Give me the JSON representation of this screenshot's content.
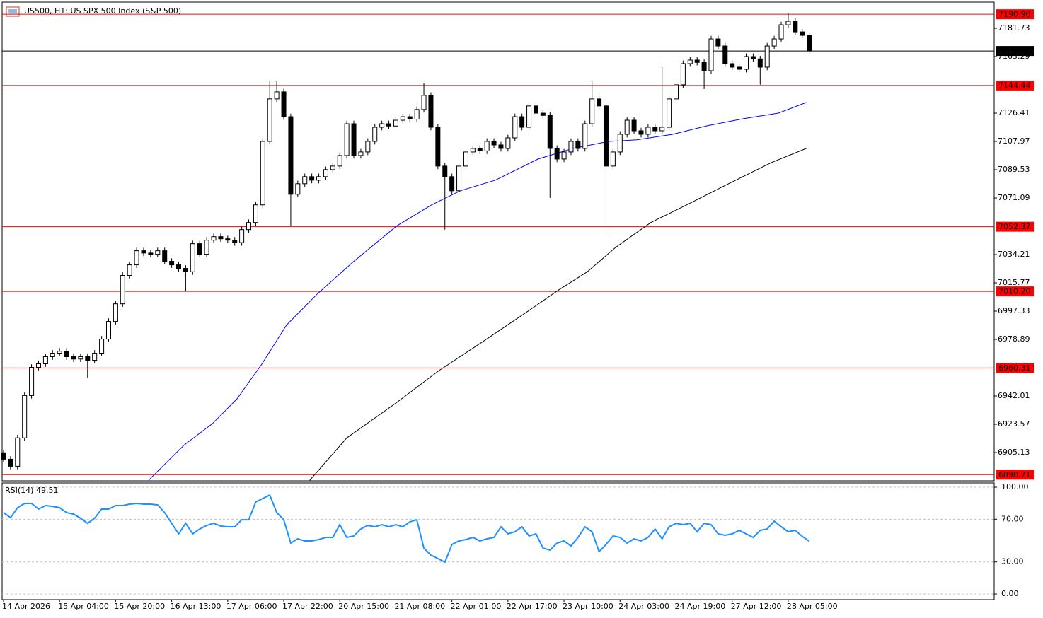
{
  "chart_data": [
    {
      "type": "candlestick",
      "title": "US500, H1: US SPX 500 Index (S&P 500)",
      "categories": [
        "14 Apr 2026",
        null,
        null,
        null,
        null,
        null,
        null,
        null,
        "15 Apr 04:00",
        null,
        null,
        null,
        null,
        null,
        null,
        null,
        "15 Apr 20:00",
        null,
        null,
        null,
        null,
        null,
        null,
        null,
        "16 Apr 13:00",
        null,
        null,
        null,
        null,
        null,
        null,
        null,
        "17 Apr 06:00",
        null,
        null,
        null,
        null,
        null,
        null,
        null,
        "17 Apr 22:00",
        null,
        null,
        null,
        null,
        null,
        null,
        null,
        "20 Apr 15:00",
        null,
        null,
        null,
        null,
        null,
        null,
        null,
        "21 Apr 08:00",
        null,
        null,
        null,
        null,
        null,
        null,
        null,
        "22 Apr 01:00",
        null,
        null,
        null,
        null,
        null,
        null,
        null,
        "22 Apr 17:00",
        null,
        null,
        null,
        null,
        null,
        null,
        null,
        "23 Apr 10:00",
        null,
        null,
        null,
        null,
        null,
        null,
        null,
        "24 Apr 03:00",
        null,
        null,
        null,
        null,
        null,
        null,
        null,
        "24 Apr 19:00",
        null,
        null,
        null,
        null,
        null,
        null,
        null,
        "27 Apr 12:00",
        null,
        null,
        null,
        null,
        null,
        null,
        null,
        "28 Apr 05:00",
        null,
        null,
        null
      ],
      "open": [
        6905.0,
        6900.8,
        6896.2,
        6914.7,
        6942.3,
        6960.7,
        6963.0,
        6967.6,
        6969.9,
        6971.2,
        6967.6,
        6966.1,
        6967.6,
        6965.3,
        6969.9,
        6979.1,
        6990.6,
        7002.1,
        7020.6,
        7027.5,
        7036.7,
        7035.2,
        7034.4,
        7036.7,
        7029.8,
        7027.5,
        7025.2,
        7023.0,
        7041.3,
        7034.4,
        7043.6,
        7045.9,
        7044.5,
        7043.6,
        7042.0,
        7050.5,
        7055.1,
        7066.6,
        7108.0,
        7135.7,
        7140.3,
        7124.1,
        7073.5,
        7080.4,
        7085.0,
        7082.7,
        7085.0,
        7089.6,
        7091.9,
        7098.8,
        7119.5,
        7098.8,
        7101.1,
        7108.0,
        7117.2,
        7119.5,
        7118.0,
        7121.8,
        7124.1,
        7122.5,
        7128.8,
        7138.0,
        7117.2,
        7091.9,
        7085.0,
        7075.8,
        7091.9,
        7101.1,
        7103.4,
        7101.8,
        7108.0,
        7105.7,
        7103.4,
        7110.3,
        7124.1,
        7117.2,
        7131.1,
        7126.4,
        7124.9,
        7103.4,
        7096.5,
        7101.1,
        7108.0,
        7103.4,
        7119.5,
        7135.7,
        7131.1,
        7091.9,
        7101.1,
        7112.6,
        7121.8,
        7114.9,
        7112.6,
        7117.2,
        7114.9,
        7117.2,
        7135.7,
        7144.9,
        7158.7,
        7161.0,
        7159.5,
        7154.1,
        7174.8,
        7170.2,
        7158.7,
        7156.4,
        7155.0,
        7163.3,
        7161.8,
        7156.4,
        7170.2,
        7174.8,
        7184.0,
        7186.3,
        7179.4,
        7177.1
      ],
      "high": [
        6907.0,
        6902.8,
        6916.7,
        6944.3,
        6962.7,
        6965.0,
        6969.6,
        6971.9,
        6973.2,
        6973.2,
        6969.6,
        6969.6,
        6969.6,
        6971.9,
        6981.1,
        6992.6,
        7004.1,
        7022.6,
        7029.5,
        7038.7,
        7038.7,
        7037.2,
        7038.7,
        7038.7,
        7031.8,
        7029.5,
        7027.2,
        7043.3,
        7043.3,
        7045.6,
        7047.9,
        7047.9,
        7046.5,
        7045.6,
        7052.5,
        7057.1,
        7068.6,
        7110.0,
        7147.2,
        7147.2,
        7142.3,
        7126.1,
        7082.4,
        7087.0,
        7087.0,
        7087.0,
        7091.6,
        7093.9,
        7100.8,
        7121.5,
        7121.5,
        7103.1,
        7110.0,
        7119.2,
        7121.5,
        7121.5,
        7123.8,
        7126.1,
        7126.1,
        7130.8,
        7145.8,
        7140.0,
        7119.2,
        7093.9,
        7087.0,
        7093.9,
        7103.1,
        7105.4,
        7105.4,
        7110.0,
        7110.0,
        7107.7,
        7112.3,
        7126.1,
        7126.1,
        7133.1,
        7133.1,
        7128.4,
        7126.9,
        7105.4,
        7103.1,
        7110.0,
        7110.0,
        7121.5,
        7147.2,
        7137.7,
        7133.1,
        7103.1,
        7114.6,
        7123.8,
        7123.8,
        7116.9,
        7119.2,
        7119.2,
        7156.4,
        7137.7,
        7146.9,
        7160.7,
        7163.0,
        7163.0,
        7161.5,
        7176.8,
        7176.8,
        7172.2,
        7160.7,
        7158.4,
        7165.3,
        7165.3,
        7163.8,
        7172.2,
        7176.8,
        7186.0,
        7191.8,
        7188.3,
        7181.4,
        7179.1
      ],
      "low": [
        6898.8,
        6894.2,
        6894.2,
        6912.7,
        6940.3,
        6958.7,
        6961.0,
        6965.6,
        6967.9,
        6965.6,
        6964.1,
        6964.1,
        6953.8,
        6963.3,
        6967.9,
        6977.1,
        6988.6,
        7000.1,
        7018.6,
        7025.5,
        7033.2,
        7032.4,
        7032.4,
        7027.8,
        7025.5,
        7023.2,
        7010.4,
        7021.0,
        7032.4,
        7032.4,
        7041.6,
        7042.5,
        7041.6,
        7040.0,
        7040.0,
        7048.5,
        7053.1,
        7064.6,
        7106.0,
        7133.7,
        7122.1,
        7052.8,
        7071.5,
        7078.4,
        7080.7,
        7080.7,
        7083.0,
        7087.6,
        7089.9,
        7096.8,
        7096.8,
        7096.8,
        7099.1,
        7106.0,
        7115.2,
        7116.0,
        7116.0,
        7119.8,
        7120.5,
        7120.5,
        7126.8,
        7115.2,
        7089.9,
        7050.5,
        7073.8,
        7073.8,
        7089.9,
        7099.1,
        7099.8,
        7099.8,
        7103.7,
        7101.4,
        7101.4,
        7108.3,
        7115.2,
        7115.2,
        7124.4,
        7122.9,
        7071.2,
        7094.5,
        7094.5,
        7099.1,
        7101.4,
        7101.4,
        7117.5,
        7129.1,
        7047.3,
        7089.9,
        7099.1,
        7110.6,
        7112.9,
        7110.6,
        7110.6,
        7112.9,
        7112.9,
        7115.2,
        7133.7,
        7142.9,
        7156.7,
        7157.5,
        7142.1,
        7152.1,
        7168.2,
        7156.7,
        7154.4,
        7153.0,
        7153.0,
        7159.8,
        7145.0,
        7154.4,
        7168.2,
        7172.8,
        7182.0,
        7177.4,
        7175.1,
        7165.0
      ],
      "close": [
        6900.8,
        6896.2,
        6914.7,
        6942.3,
        6960.7,
        6963.0,
        6967.6,
        6969.9,
        6971.2,
        6967.6,
        6966.1,
        6967.6,
        6965.3,
        6969.9,
        6979.1,
        6990.6,
        7002.1,
        7020.6,
        7027.5,
        7036.7,
        7035.2,
        7034.4,
        7036.7,
        7029.8,
        7027.5,
        7025.2,
        7023.0,
        7041.3,
        7034.4,
        7043.6,
        7045.9,
        7044.5,
        7043.6,
        7042.0,
        7050.5,
        7055.1,
        7066.6,
        7108.0,
        7135.7,
        7140.3,
        7124.1,
        7073.5,
        7080.4,
        7085.0,
        7082.7,
        7085.0,
        7089.6,
        7091.9,
        7098.8,
        7119.5,
        7098.8,
        7101.1,
        7108.0,
        7117.2,
        7119.5,
        7118.0,
        7121.8,
        7124.1,
        7122.5,
        7128.8,
        7138.0,
        7117.2,
        7091.9,
        7085.0,
        7075.8,
        7091.9,
        7101.1,
        7103.4,
        7101.8,
        7108.0,
        7105.7,
        7103.4,
        7110.3,
        7124.1,
        7117.2,
        7131.1,
        7126.4,
        7124.9,
        7103.4,
        7096.5,
        7101.1,
        7108.0,
        7103.4,
        7119.5,
        7135.7,
        7131.1,
        7091.9,
        7101.1,
        7112.6,
        7121.8,
        7114.9,
        7112.6,
        7117.2,
        7114.9,
        7117.2,
        7135.7,
        7144.9,
        7158.7,
        7161.0,
        7159.5,
        7154.1,
        7174.8,
        7170.2,
        7158.7,
        7156.4,
        7155.0,
        7163.3,
        7161.8,
        7156.4,
        7170.2,
        7174.8,
        7184.0,
        7186.3,
        7179.4,
        7177.1,
        7166.95
      ],
      "up_color": "#ffffff",
      "down_color": "#000000",
      "series": [
        {
          "color": "#0000ff",
          "x": [
            20.7,
            25.8,
            29.8,
            33.3,
            36.9,
            40.4,
            44.9,
            50.0,
            56.1,
            61.1,
            65.2,
            70.2,
            76.3,
            81.3,
            86.4,
            90.4,
            95.5,
            100.5,
            105.6,
            110.6,
            114.6
          ],
          "values": [
            6887.0,
            6910.1,
            6923.9,
            6940.0,
            6963.0,
            6988.3,
            7009.0,
            7029.8,
            7052.8,
            7066.6,
            7075.8,
            7082.7,
            7096.5,
            7103.4,
            7108.0,
            7109.0,
            7112.6,
            7118.2,
            7122.8,
            7126.4,
            7133.4
          ]
        },
        {
          "color": "#000000",
          "x": [
            43.7,
            49.0,
            56.1,
            62.1,
            68.2,
            74.2,
            79.3,
            83.3,
            87.4,
            92.4,
            97.5,
            103.5,
            109.6,
            114.6
          ],
          "values": [
            6887.0,
            6914.7,
            6937.7,
            6958.4,
            6976.8,
            6995.2,
            7011.3,
            7022.9,
            7039.0,
            7055.1,
            7066.6,
            7080.4,
            7094.2,
            7103.4
          ]
        }
      ],
      "levels": [
        {
          "value": 7190.9,
          "label": "7190.90"
        },
        7144.44,
        7052.37,
        {
          "value": 7010.2,
          "label": "7010.20"
        },
        6960.31,
        6890.71
      ],
      "level_color": "#ff0000",
      "current_price": 7166.95,
      "xlim": [
        -0.2,
        141.4
      ],
      "ylim": [
        6886.7,
        7198.8
      ],
      "yticks": [
        7181.73,
        7163.29,
        7126.41,
        7107.97,
        7089.53,
        7071.09,
        7034.21,
        7015.77,
        6997.33,
        6978.89,
        6942.01,
        6923.57,
        6905.13
      ]
    },
    {
      "type": "line",
      "title": "RSI(14) 49.51",
      "color": "#1e90ff",
      "values": [
        76.2,
        71.5,
        80.8,
        84.8,
        84.8,
        79.5,
        82.8,
        82.1,
        80.8,
        76.2,
        74.8,
        70.9,
        66.2,
        70.9,
        79.5,
        79.5,
        82.8,
        82.8,
        84.1,
        84.8,
        84.1,
        84.1,
        83.4,
        76.2,
        66.2,
        56.3,
        66.2,
        56.3,
        60.9,
        64.2,
        66.2,
        63.6,
        62.9,
        62.9,
        69.5,
        69.5,
        86.1,
        89.4,
        92.7,
        76.2,
        69.5,
        47.7,
        51.7,
        49.7,
        49.7,
        51.0,
        53.0,
        53.0,
        64.9,
        53.0,
        54.3,
        60.9,
        64.2,
        62.9,
        64.9,
        62.9,
        64.9,
        62.9,
        67.5,
        69.5,
        43.0,
        36.4,
        33.1,
        29.8,
        46.4,
        49.7,
        51.0,
        53.0,
        49.7,
        51.7,
        53.0,
        62.9,
        56.3,
        58.3,
        62.9,
        54.3,
        56.3,
        43.0,
        41.1,
        47.7,
        49.7,
        45.0,
        53.0,
        62.9,
        58.3,
        39.7,
        46.4,
        54.3,
        53.0,
        47.7,
        51.7,
        49.7,
        53.0,
        60.9,
        51.7,
        62.9,
        66.2,
        64.9,
        66.2,
        58.3,
        66.2,
        64.9,
        56.3,
        55.0,
        56.3,
        59.6,
        56.3,
        53.0,
        59.6,
        60.9,
        68.2,
        62.9,
        58.3,
        59.6,
        54.0,
        49.51
      ],
      "xlim": [
        -0.2,
        141.4
      ],
      "ylim": [
        -5.3,
        104.0
      ],
      "yticks": [
        {
          "value": 100,
          "label": "100.00"
        },
        {
          "value": 70,
          "label": "70.00"
        },
        {
          "value": 30,
          "label": "30.00"
        },
        {
          "value": 0,
          "label": "0.00"
        }
      ],
      "grid": "dashed"
    }
  ]
}
